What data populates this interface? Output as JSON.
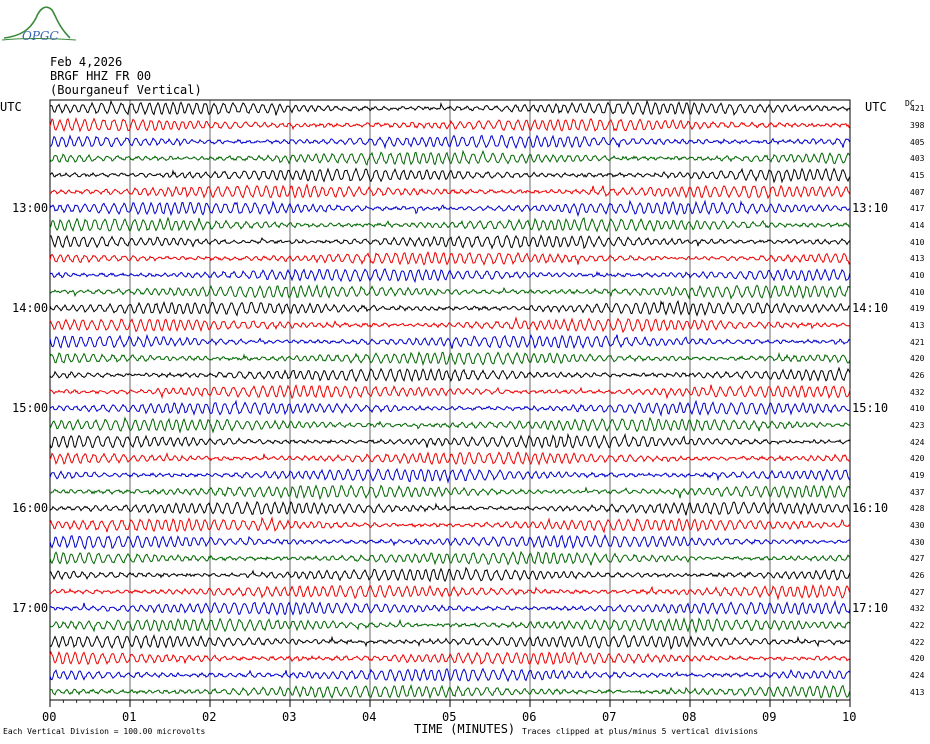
{
  "logo_text": "OPGC",
  "header": {
    "date": "Feb 4,2026",
    "station": "BRGF HHZ FR 00",
    "location": "(Bourganeuf Vertical)"
  },
  "utc_label": "UTC",
  "dc_label": "DC",
  "left_times": [
    "13:00",
    "14:00",
    "15:00",
    "16:00",
    "17:00"
  ],
  "right_times": [
    "13:10",
    "14:10",
    "15:10",
    "16:10",
    "17:10"
  ],
  "x_ticks": [
    "00",
    "01",
    "02",
    "03",
    "04",
    "05",
    "06",
    "07",
    "08",
    "09",
    "10"
  ],
  "xlabel": "TIME (MINUTES)",
  "footer_left": "Each Vertical Division =  100.00 microvolts",
  "footer_right": "Traces clipped at plus/minus 5 vertical divisions",
  "colors": {
    "trace_cycle": [
      "#000000",
      "#ee0000",
      "#0000cc",
      "#006600"
    ],
    "grid": "#000000"
  },
  "chart_data": {
    "type": "line",
    "title": "BRGF HHZ FR 00 (Bourganeuf Vertical)",
    "xlabel": "TIME (MINUTES)",
    "xlim": [
      0,
      10
    ],
    "grid": true,
    "trace_count": 36,
    "dc_offsets": [
      421,
      398,
      405,
      403,
      415,
      407,
      417,
      414,
      410,
      413,
      410,
      410,
      419,
      413,
      421,
      420,
      426,
      432,
      410,
      423,
      424,
      420,
      419,
      437,
      428,
      430,
      430,
      427,
      426,
      427,
      432,
      422,
      422,
      420,
      424,
      413
    ]
  }
}
